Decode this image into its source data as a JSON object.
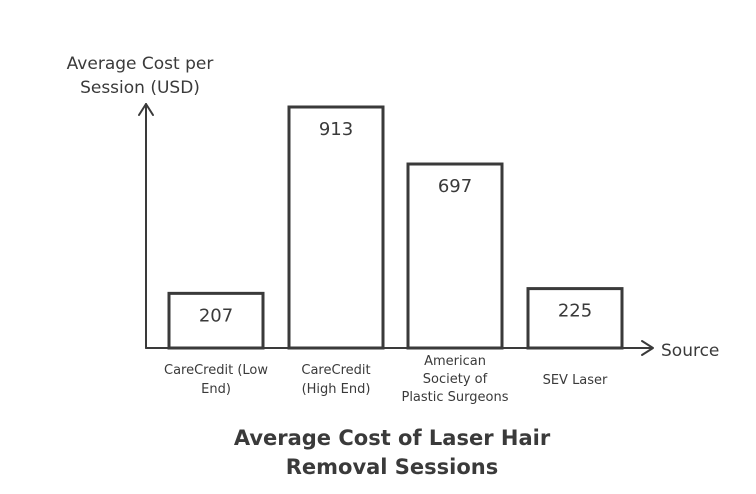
{
  "chart_data": {
    "type": "bar",
    "title_lines": [
      "Average Cost of Laser Hair",
      "Removal Sessions"
    ],
    "xlabel": "Source",
    "ylabel_lines": [
      "Average Cost per",
      "Session (USD)"
    ],
    "categories": [
      [
        "CareCredit (Low",
        "End)"
      ],
      [
        "CareCredit",
        "(High End)"
      ],
      [
        "American",
        "Society of",
        "Plastic Surgeons"
      ],
      [
        "SEV Laser"
      ]
    ],
    "values": [
      207,
      913,
      697,
      225
    ],
    "ylim": [
      0,
      913
    ],
    "grid": false,
    "legend": "none"
  }
}
